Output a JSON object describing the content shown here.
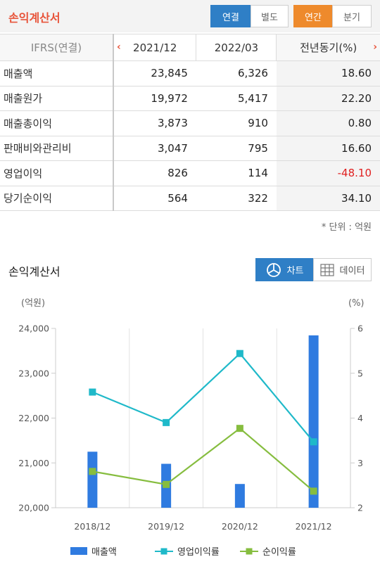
{
  "header": {
    "title": "손익계산서",
    "tabs_scope": [
      "연결",
      "별도"
    ],
    "tabs_period": [
      "연간",
      "분기"
    ]
  },
  "table": {
    "label_header": "IFRS(연결)",
    "columns": [
      "2021/12",
      "2022/03",
      "전년동기(%)"
    ],
    "rows": [
      {
        "label": "매출액",
        "values": [
          "23,845",
          "6,326",
          "18.60"
        ]
      },
      {
        "label": "매출원가",
        "values": [
          "19,972",
          "5,417",
          "22.20"
        ]
      },
      {
        "label": "매출총이익",
        "values": [
          "3,873",
          "910",
          "0.80"
        ]
      },
      {
        "label": "판매비와관리비",
        "values": [
          "3,047",
          "795",
          "16.60"
        ]
      },
      {
        "label": "영업이익",
        "values": [
          "826",
          "114",
          "-48.10"
        ]
      },
      {
        "label": "당기순이익",
        "values": [
          "564",
          "322",
          "34.10"
        ]
      }
    ],
    "unit_note": "* 단위 : 억원"
  },
  "chart_section": {
    "title": "손익계산서",
    "chart_button": "차트",
    "data_button": "데이터"
  },
  "colors": {
    "bar": "#2f7be0",
    "op_margin": "#1fb9c9",
    "net_margin": "#86bd3f",
    "accent": "#e8543a"
  },
  "icons": [
    "chevron-left-icon",
    "chevron-right-icon",
    "pie-chart-icon",
    "table-grid-icon"
  ],
  "chart_data": {
    "type": "bar",
    "categories": [
      "2018/12",
      "2019/12",
      "2020/12",
      "2021/12"
    ],
    "left_axis": {
      "label": "(억원)",
      "ylim": [
        20000,
        24000
      ],
      "ticks": [
        "20,000",
        "21,000",
        "22,000",
        "23,000",
        "24,000"
      ]
    },
    "right_axis": {
      "label": "(%)",
      "ylim": [
        2,
        6
      ],
      "ticks": [
        "2",
        "3",
        "4",
        "5",
        "6"
      ]
    },
    "series": [
      {
        "name": "매출액",
        "kind": "bar",
        "axis": "left",
        "values": [
          21250,
          20980,
          20530,
          23845
        ]
      },
      {
        "name": "영업이익률",
        "kind": "line",
        "axis": "right",
        "marker": "square",
        "values": [
          4.58,
          3.9,
          5.44,
          3.47
        ]
      },
      {
        "name": "순이익률",
        "kind": "line",
        "axis": "right",
        "marker": "square",
        "values": [
          2.81,
          2.52,
          3.77,
          2.37
        ]
      }
    ],
    "grid": "vertical",
    "legend": "bottom"
  }
}
